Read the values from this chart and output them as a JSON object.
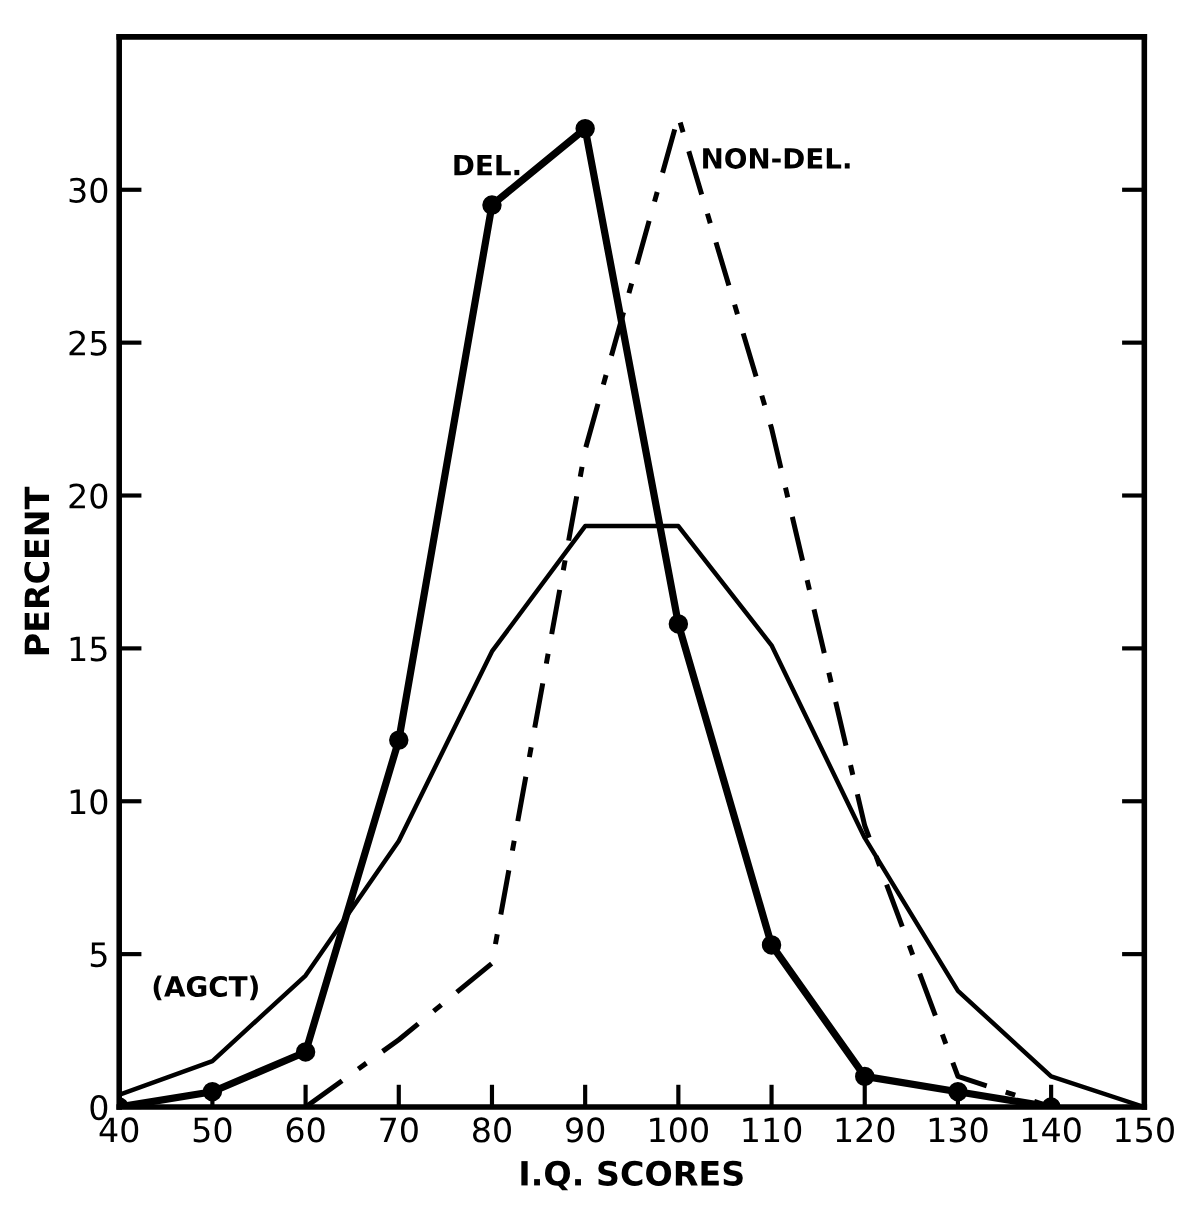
{
  "chart_data": {
    "type": "line",
    "xlabel": "I.Q. SCORES",
    "ylabel": "PERCENT",
    "x": [
      40,
      50,
      60,
      70,
      80,
      90,
      100,
      110,
      120,
      130,
      140,
      150
    ],
    "xlim": [
      40,
      150
    ],
    "xticks": [
      40,
      50,
      60,
      70,
      80,
      90,
      100,
      110,
      120,
      130,
      140,
      150
    ],
    "ylim": [
      0,
      35
    ],
    "yticks": [
      0,
      5,
      10,
      15,
      20,
      25,
      30
    ],
    "grid": false,
    "legend": false,
    "series": [
      {
        "name": "DEL.",
        "color": "#000000",
        "marker": "circle",
        "line_style": "solid",
        "values": [
          0,
          0.5,
          1.8,
          12,
          29.5,
          32,
          15.8,
          5.3,
          1,
          0.5,
          0,
          null
        ]
      },
      {
        "name": "NON-DEL.",
        "color": "#000000",
        "marker": "none",
        "line_style": "dashed",
        "values": [
          null,
          null,
          0,
          2.2,
          4.7,
          21.5,
          32.4,
          22.2,
          9.2,
          1,
          0,
          null
        ]
      },
      {
        "name": "(AGCT)",
        "color": "#000000",
        "marker": "none",
        "line_style": "solid",
        "values": [
          0.4,
          1.5,
          4.3,
          8.7,
          14.9,
          19,
          19,
          15.1,
          8.8,
          3.8,
          1,
          0
        ]
      }
    ]
  }
}
